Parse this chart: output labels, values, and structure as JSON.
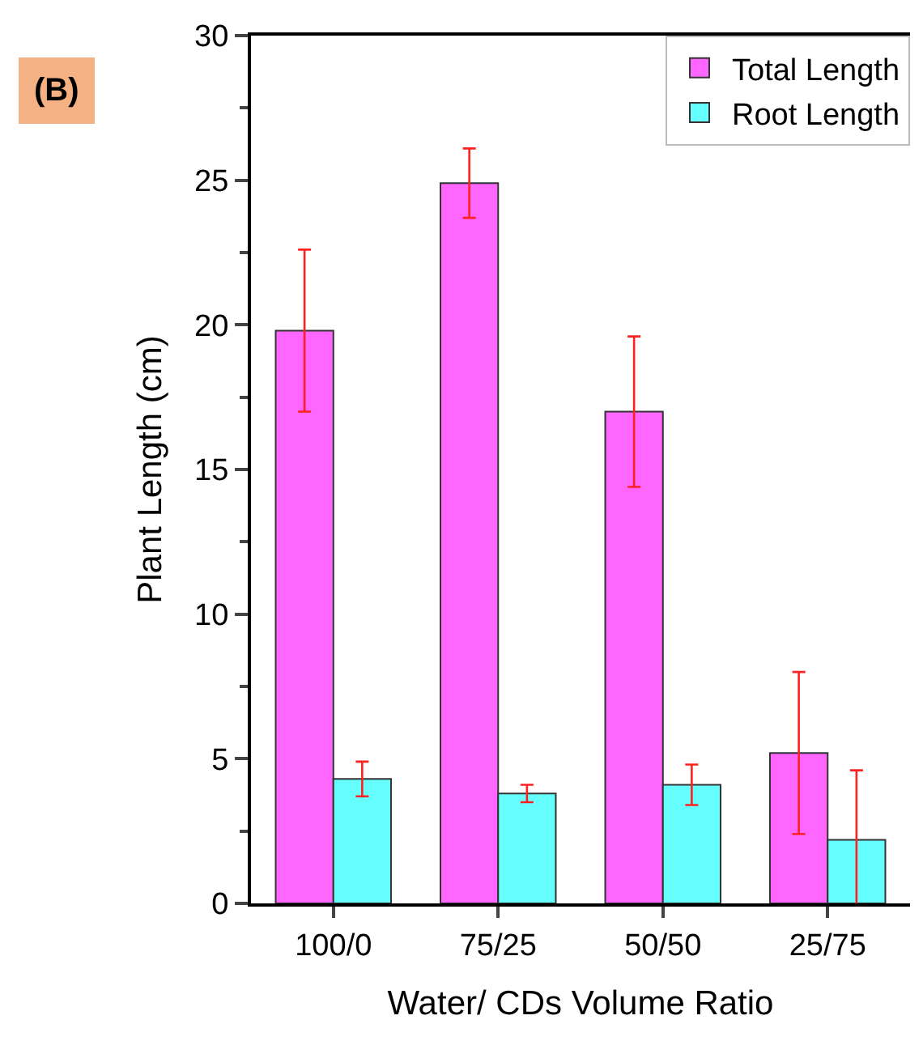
{
  "chart_data": {
    "type": "bar",
    "categories": [
      "100/0",
      "75/25",
      "50/50",
      "25/75"
    ],
    "series": [
      {
        "name": "Total Length",
        "color": "#ff66ff",
        "values": [
          19.8,
          24.9,
          17.0,
          5.2
        ],
        "errors": [
          2.8,
          1.2,
          2.6,
          2.8
        ]
      },
      {
        "name": "Root Length",
        "color": "#66ffff",
        "values": [
          4.3,
          3.8,
          4.1,
          2.2
        ],
        "errors": [
          0.6,
          0.3,
          0.7,
          2.4
        ]
      }
    ],
    "xlabel": "Water/ CDs Volume Ratio",
    "ylabel": "Plant Length (cm)",
    "annotations": [
      "(B)"
    ],
    "ylim": [
      0,
      30
    ],
    "yticks": [
      0,
      5,
      10,
      15,
      20,
      25,
      30
    ],
    "grid": false,
    "legend": "top right"
  }
}
